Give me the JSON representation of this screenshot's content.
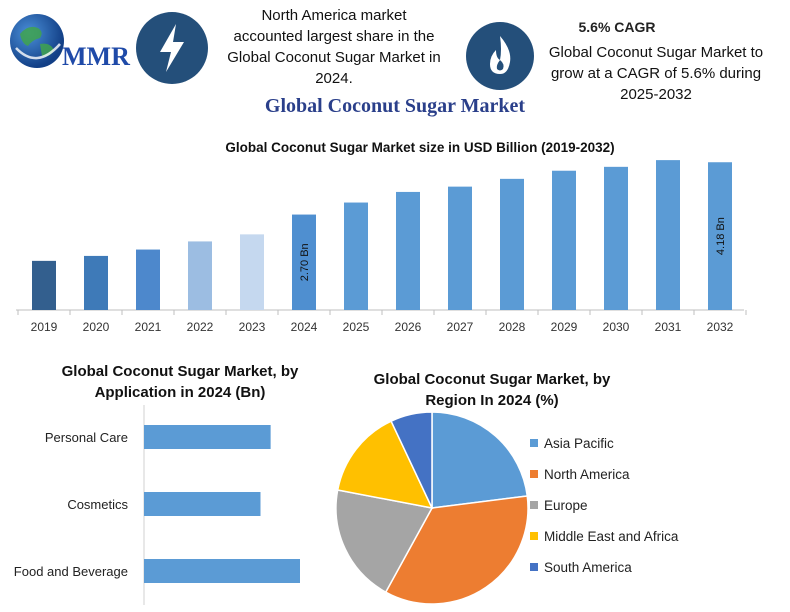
{
  "logo": {
    "text": "MMR"
  },
  "info_left": {
    "lines": [
      "North America market",
      "accounted largest share in the",
      "Global Coconut Sugar Market in",
      "2024."
    ],
    "icon": "lightning-bolt-icon"
  },
  "info_right": {
    "heading": "5.6% CAGR",
    "lines": [
      "Global Coconut Sugar Market to",
      "grow at a CAGR of 5.6% during",
      "2025-2032"
    ],
    "icon": "flame-icon"
  },
  "main_title": "Global Coconut Sugar Market",
  "chart_data": [
    {
      "type": "bar",
      "title": "Global Coconut Sugar Market  size in USD Billion (2019-2032)",
      "categories": [
        "2019",
        "2020",
        "2021",
        "2022",
        "2023",
        "2024",
        "2025",
        "2026",
        "2027",
        "2028",
        "2029",
        "2030",
        "2031",
        "2032"
      ],
      "values": [
        1.39,
        1.53,
        1.71,
        1.94,
        2.14,
        2.7,
        3.04,
        3.34,
        3.49,
        3.71,
        3.94,
        4.05,
        4.24,
        4.18
      ],
      "data_labels": {
        "2024": "2.70 Bn",
        "2032": "4.18 Bn"
      },
      "colors": [
        "#335f8e",
        "#3e7ab8",
        "#4d88cc",
        "#9cbde2",
        "#c5d8ef",
        "#4f8fd0",
        "#5b9bd5",
        "#5b9bd5",
        "#5b9bd5",
        "#5b9bd5",
        "#5b9bd5",
        "#5b9bd5",
        "#5b9bd5",
        "#5b9bd5"
      ],
      "grid": false
    },
    {
      "type": "bar",
      "orientation": "horizontal",
      "title_lines": [
        "Global Coconut Sugar Market, by",
        "Application in 2024 (Bn)"
      ],
      "categories": [
        "Personal Care",
        "Cosmetics",
        "Food and Beverage"
      ],
      "values": [
        1.25,
        1.15,
        1.54
      ],
      "color": "#5b9bd5"
    },
    {
      "type": "pie",
      "title_lines": [
        "Global Coconut Sugar Market, by",
        "Region In 2024 (%)"
      ],
      "series": [
        {
          "name": "Asia Pacific",
          "value": 23,
          "color": "#5b9bd5"
        },
        {
          "name": "North America",
          "value": 35,
          "color": "#ed7d31"
        },
        {
          "name": "Europe",
          "value": 20,
          "color": "#a5a5a5"
        },
        {
          "name": "Middle East and Africa",
          "value": 15,
          "color": "#ffc000"
        },
        {
          "name": "South America",
          "value": 7,
          "color": "#4472c4"
        }
      ],
      "legend_position": "right"
    }
  ]
}
